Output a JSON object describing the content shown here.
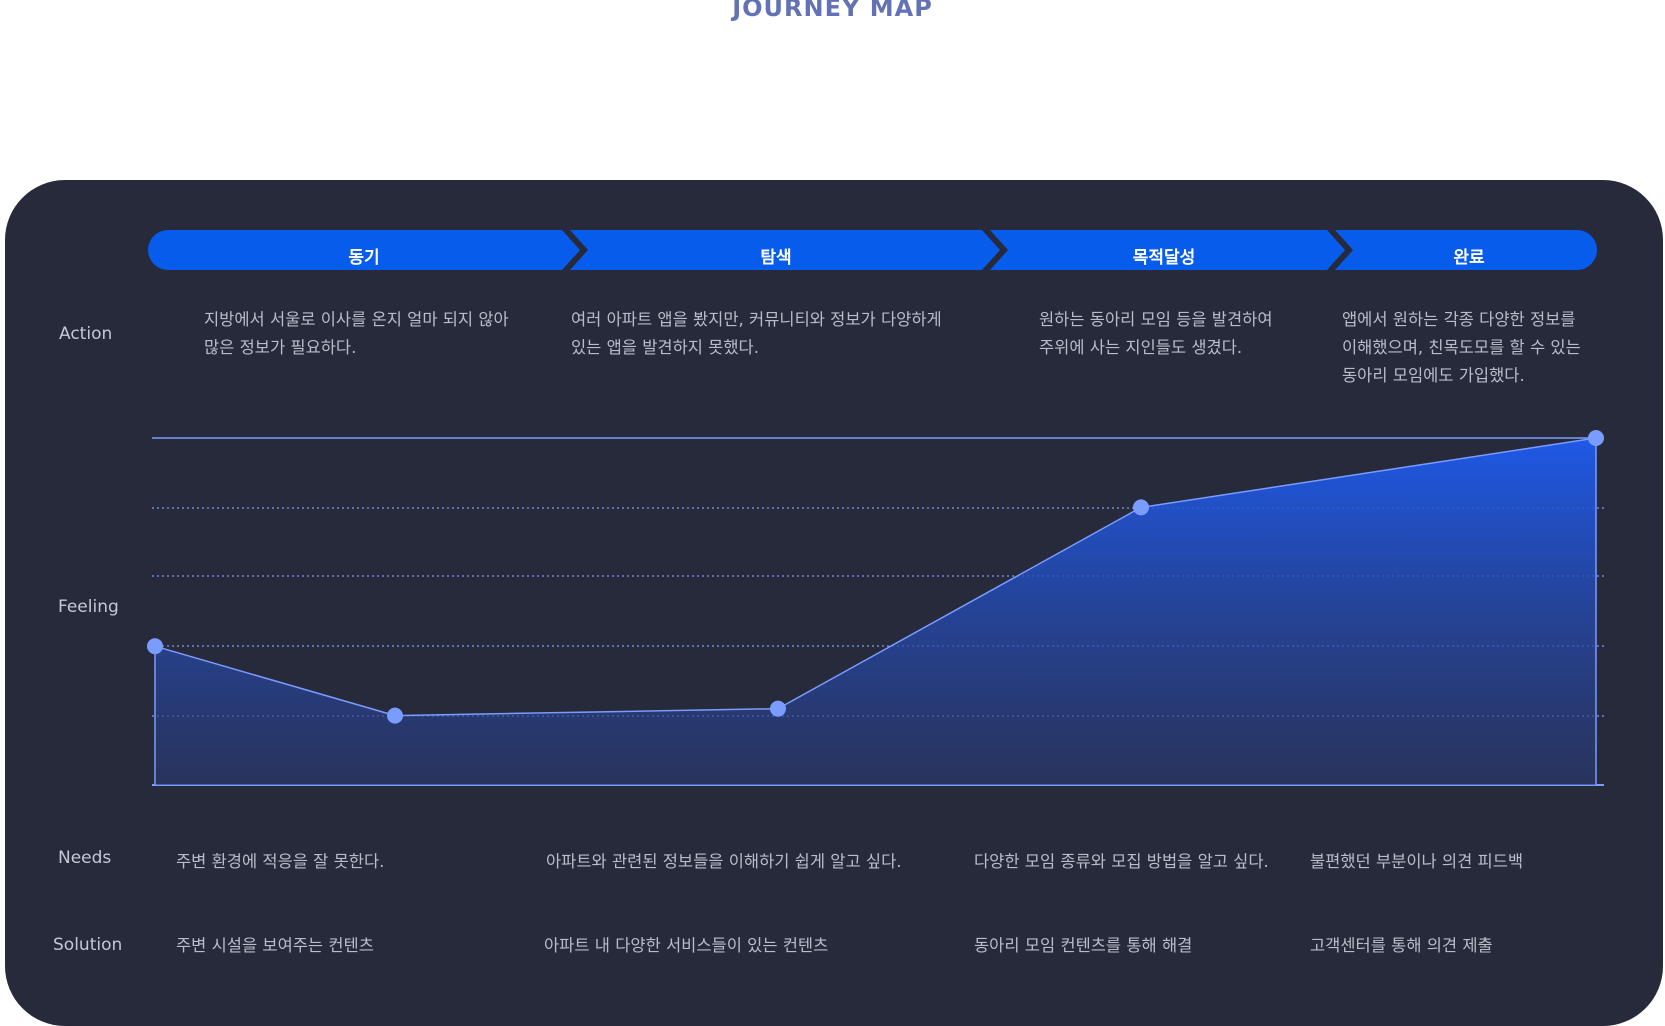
{
  "title": "JOURNEY MAP",
  "colors": {
    "accent": "#075cec",
    "background": "#262a3b",
    "line": "#7b9cff",
    "title": "#6272b4"
  },
  "row_labels": {
    "action": "Action",
    "feeling": "Feeling",
    "needs": "Needs",
    "solution": "Solution"
  },
  "stages": [
    "동기",
    "탐색",
    "목적달성",
    "완료"
  ],
  "actions": [
    "지방에서 서울로 이사를 온지 얼마 되지 않아\n많은 정보가 필요하다.",
    "여러 아파트 앱을 봤지만, 커뮤니티와 정보가 다양하게\n있는 앱을 발견하지 못했다.",
    "원하는 동아리 모임 등을 발견하여\n주위에 사는 지인들도 생겼다.",
    "앱에서 원하는 각종 다양한 정보를\n이해했으며, 친목도모를 할 수 있는\n동아리 모임에도 가입했다."
  ],
  "needs": [
    "주변 환경에 적응을 잘 못한다.",
    "아파트와 관련된 정보들을 이해하기 쉽게 알고 싶다.",
    "다양한 모임 종류와 모집 방법을 알고 싶다.",
    "불편했던 부분이나 의견 피드백"
  ],
  "solutions": [
    "주변 시설을 보여주는 컨텐츠",
    "아파트 내 다양한 서비스들이 있는 컨텐츠",
    "동아리 모임 컨텐츠를 통해 해결",
    "고객센터를 통해 의견 제출"
  ],
  "chart_data": {
    "type": "area",
    "x": [
      0,
      1,
      2,
      3,
      4
    ],
    "values": [
      2,
      1,
      1.1,
      4,
      5
    ],
    "ylim": [
      0,
      5
    ],
    "grid": "dotted horizontal lines"
  }
}
